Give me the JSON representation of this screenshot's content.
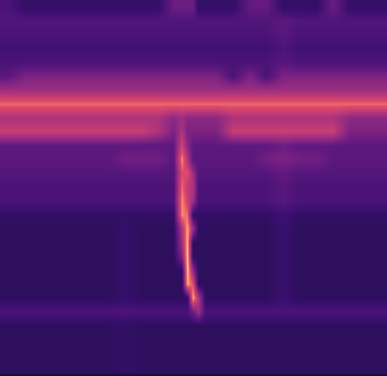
{
  "chart_data": {
    "type": "heatmap",
    "x": [
      12,
      36,
      60,
      84,
      108,
      132,
      156,
      180,
      204,
      228,
      250,
      262,
      270,
      278,
      286,
      296,
      312,
      336,
      360,
      384,
      408,
      432,
      456,
      480,
      504,
      528,
      552
    ],
    "y": [
      10,
      30,
      50,
      70,
      90,
      110,
      130,
      150,
      170,
      190,
      210,
      230,
      250,
      270,
      290,
      310,
      330,
      350,
      370,
      390,
      410,
      430,
      450,
      470,
      490,
      510,
      530
    ],
    "xlim": [
      0,
      558
    ],
    "ylim": [
      543,
      0
    ],
    "zlim": [
      0,
      1
    ],
    "tick_labels": false,
    "cells": [
      [
        0.3,
        0.22,
        0.22,
        0.22,
        0.22,
        0.22,
        0.22,
        0.22,
        0.22,
        0.22,
        0.4,
        0.4,
        0.4,
        0.4,
        0.22,
        0.22,
        0.22,
        0.22,
        0.38,
        0.38,
        0.22,
        0.22,
        0.22,
        0.4,
        0.22,
        0.22,
        0.22
      ],
      [
        0.32,
        0.32,
        0.32,
        0.32,
        0.32,
        0.32,
        0.32,
        0.32,
        0.32,
        0.32,
        0.32,
        0.32,
        0.32,
        0.32,
        0.32,
        0.32,
        0.32,
        0.32,
        0.32,
        0.32,
        0.36,
        0.32,
        0.32,
        0.32,
        0.32,
        0.32,
        0.32
      ],
      [
        0.3,
        0.3,
        0.3,
        0.3,
        0.3,
        0.3,
        0.3,
        0.3,
        0.3,
        0.3,
        0.3,
        0.3,
        0.3,
        0.3,
        0.3,
        0.3,
        0.3,
        0.3,
        0.3,
        0.3,
        0.34,
        0.3,
        0.3,
        0.3,
        0.3,
        0.3,
        0.3
      ],
      [
        0.27,
        0.27,
        0.27,
        0.27,
        0.27,
        0.27,
        0.27,
        0.27,
        0.27,
        0.27,
        0.27,
        0.27,
        0.27,
        0.27,
        0.27,
        0.27,
        0.27,
        0.27,
        0.27,
        0.27,
        0.31,
        0.27,
        0.27,
        0.27,
        0.27,
        0.27,
        0.27
      ],
      [
        0.3,
        0.3,
        0.3,
        0.3,
        0.3,
        0.3,
        0.3,
        0.3,
        0.3,
        0.3,
        0.3,
        0.3,
        0.3,
        0.3,
        0.3,
        0.3,
        0.3,
        0.3,
        0.3,
        0.3,
        0.34,
        0.3,
        0.3,
        0.3,
        0.3,
        0.3,
        0.3
      ],
      [
        0.35,
        0.45,
        0.45,
        0.45,
        0.45,
        0.45,
        0.45,
        0.45,
        0.45,
        0.45,
        0.45,
        0.45,
        0.45,
        0.45,
        0.45,
        0.45,
        0.45,
        0.3,
        0.45,
        0.3,
        0.45,
        0.45,
        0.45,
        0.45,
        0.45,
        0.45,
        0.45
      ],
      [
        0.55,
        0.55,
        0.55,
        0.55,
        0.55,
        0.55,
        0.55,
        0.55,
        0.55,
        0.55,
        0.55,
        0.55,
        0.55,
        0.55,
        0.55,
        0.55,
        0.55,
        0.55,
        0.55,
        0.55,
        0.55,
        0.55,
        0.55,
        0.55,
        0.55,
        0.55,
        0.55
      ],
      [
        0.8,
        0.8,
        0.8,
        0.8,
        0.8,
        0.8,
        0.8,
        0.8,
        0.8,
        0.8,
        0.8,
        0.8,
        0.8,
        0.8,
        0.8,
        0.8,
        0.8,
        0.8,
        0.8,
        0.8,
        0.8,
        0.8,
        0.8,
        0.8,
        0.8,
        0.8,
        0.8
      ],
      [
        0.6,
        0.6,
        0.6,
        0.6,
        0.6,
        0.6,
        0.6,
        0.6,
        0.6,
        0.6,
        0.5,
        0.55,
        0.5,
        0.5,
        0.5,
        0.5,
        0.5,
        0.6,
        0.6,
        0.6,
        0.6,
        0.6,
        0.6,
        0.6,
        0.5,
        0.5,
        0.5
      ],
      [
        0.68,
        0.68,
        0.68,
        0.68,
        0.68,
        0.68,
        0.68,
        0.68,
        0.68,
        0.6,
        0.45,
        0.6,
        0.45,
        0.45,
        0.45,
        0.45,
        0.45,
        0.68,
        0.68,
        0.68,
        0.68,
        0.68,
        0.68,
        0.68,
        0.45,
        0.45,
        0.45
      ],
      [
        0.36,
        0.36,
        0.36,
        0.36,
        0.36,
        0.36,
        0.36,
        0.36,
        0.36,
        0.36,
        0.36,
        0.7,
        0.5,
        0.36,
        0.36,
        0.36,
        0.36,
        0.36,
        0.36,
        0.36,
        0.4,
        0.36,
        0.36,
        0.36,
        0.36,
        0.36,
        0.36
      ],
      [
        0.35,
        0.35,
        0.35,
        0.35,
        0.35,
        0.35,
        0.35,
        0.42,
        0.42,
        0.42,
        0.35,
        0.85,
        0.6,
        0.35,
        0.35,
        0.35,
        0.35,
        0.35,
        0.35,
        0.42,
        0.45,
        0.42,
        0.42,
        0.35,
        0.35,
        0.35,
        0.35
      ],
      [
        0.33,
        0.33,
        0.33,
        0.33,
        0.33,
        0.33,
        0.33,
        0.33,
        0.33,
        0.33,
        0.33,
        0.75,
        0.75,
        0.55,
        0.33,
        0.33,
        0.33,
        0.33,
        0.33,
        0.33,
        0.37,
        0.33,
        0.33,
        0.33,
        0.33,
        0.33,
        0.33
      ],
      [
        0.3,
        0.3,
        0.3,
        0.3,
        0.3,
        0.3,
        0.3,
        0.3,
        0.3,
        0.3,
        0.3,
        0.8,
        0.65,
        0.6,
        0.3,
        0.3,
        0.3,
        0.3,
        0.3,
        0.3,
        0.34,
        0.3,
        0.3,
        0.3,
        0.3,
        0.3,
        0.3
      ],
      [
        0.3,
        0.3,
        0.3,
        0.3,
        0.3,
        0.3,
        0.3,
        0.3,
        0.3,
        0.3,
        0.3,
        0.85,
        0.7,
        0.55,
        0.3,
        0.3,
        0.3,
        0.3,
        0.3,
        0.3,
        0.34,
        0.3,
        0.3,
        0.3,
        0.3,
        0.3,
        0.3
      ],
      [
        0.22,
        0.22,
        0.22,
        0.22,
        0.22,
        0.22,
        0.22,
        0.22,
        0.22,
        0.22,
        0.22,
        0.85,
        0.8,
        0.22,
        0.22,
        0.22,
        0.22,
        0.22,
        0.22,
        0.22,
        0.26,
        0.22,
        0.22,
        0.22,
        0.22,
        0.22,
        0.22
      ],
      [
        0.2,
        0.2,
        0.2,
        0.2,
        0.2,
        0.2,
        0.2,
        0.23,
        0.2,
        0.2,
        0.2,
        0.6,
        0.9,
        0.55,
        0.2,
        0.2,
        0.2,
        0.2,
        0.2,
        0.2,
        0.24,
        0.2,
        0.2,
        0.2,
        0.2,
        0.2,
        0.2
      ],
      [
        0.2,
        0.2,
        0.2,
        0.2,
        0.2,
        0.2,
        0.2,
        0.23,
        0.2,
        0.2,
        0.2,
        0.55,
        0.92,
        0.2,
        0.2,
        0.2,
        0.2,
        0.2,
        0.2,
        0.2,
        0.24,
        0.2,
        0.2,
        0.2,
        0.2,
        0.2,
        0.2
      ],
      [
        0.2,
        0.2,
        0.2,
        0.2,
        0.2,
        0.2,
        0.2,
        0.23,
        0.2,
        0.2,
        0.2,
        0.45,
        0.95,
        0.2,
        0.2,
        0.2,
        0.2,
        0.2,
        0.2,
        0.2,
        0.24,
        0.2,
        0.2,
        0.2,
        0.2,
        0.2,
        0.2
      ],
      [
        0.2,
        0.2,
        0.2,
        0.2,
        0.2,
        0.2,
        0.2,
        0.23,
        0.2,
        0.2,
        0.2,
        0.2,
        0.95,
        0.5,
        0.2,
        0.2,
        0.2,
        0.2,
        0.2,
        0.2,
        0.24,
        0.2,
        0.2,
        0.2,
        0.2,
        0.2,
        0.2
      ],
      [
        0.2,
        0.2,
        0.2,
        0.2,
        0.2,
        0.2,
        0.2,
        0.23,
        0.2,
        0.2,
        0.2,
        0.2,
        0.9,
        0.75,
        0.2,
        0.2,
        0.2,
        0.2,
        0.2,
        0.2,
        0.24,
        0.2,
        0.2,
        0.2,
        0.2,
        0.2,
        0.2
      ],
      [
        0.2,
        0.2,
        0.2,
        0.2,
        0.2,
        0.2,
        0.2,
        0.23,
        0.2,
        0.2,
        0.2,
        0.2,
        0.2,
        0.9,
        0.6,
        0.2,
        0.2,
        0.2,
        0.2,
        0.2,
        0.24,
        0.2,
        0.2,
        0.2,
        0.2,
        0.2,
        0.2
      ],
      [
        0.3,
        0.3,
        0.3,
        0.3,
        0.3,
        0.3,
        0.3,
        0.3,
        0.3,
        0.3,
        0.3,
        0.3,
        0.3,
        0.4,
        0.55,
        0.3,
        0.3,
        0.3,
        0.3,
        0.3,
        0.3,
        0.3,
        0.3,
        0.3,
        0.3,
        0.3,
        0.3
      ],
      [
        0.2,
        0.2,
        0.2,
        0.2,
        0.2,
        0.2,
        0.2,
        0.22,
        0.2,
        0.2,
        0.2,
        0.2,
        0.2,
        0.2,
        0.2,
        0.2,
        0.2,
        0.2,
        0.2,
        0.2,
        0.2,
        0.2,
        0.2,
        0.2,
        0.2,
        0.2,
        0.2
      ],
      [
        0.2,
        0.2,
        0.2,
        0.2,
        0.2,
        0.2,
        0.2,
        0.22,
        0.2,
        0.2,
        0.2,
        0.2,
        0.2,
        0.2,
        0.2,
        0.2,
        0.2,
        0.2,
        0.2,
        0.2,
        0.2,
        0.2,
        0.2,
        0.2,
        0.2,
        0.2,
        0.2
      ],
      [
        0.2,
        0.2,
        0.2,
        0.2,
        0.2,
        0.2,
        0.2,
        0.22,
        0.2,
        0.2,
        0.2,
        0.2,
        0.2,
        0.2,
        0.2,
        0.2,
        0.2,
        0.2,
        0.2,
        0.2,
        0.2,
        0.2,
        0.2,
        0.2,
        0.2,
        0.2,
        0.2
      ],
      [
        0.2,
        0.2,
        0.2,
        0.2,
        0.2,
        0.2,
        0.2,
        0.22,
        0.2,
        0.2,
        0.2,
        0.2,
        0.2,
        0.2,
        0.2,
        0.2,
        0.2,
        0.2,
        0.2,
        0.2,
        0.2,
        0.2,
        0.2,
        0.2,
        0.2,
        0.2,
        0.2
      ]
    ]
  }
}
